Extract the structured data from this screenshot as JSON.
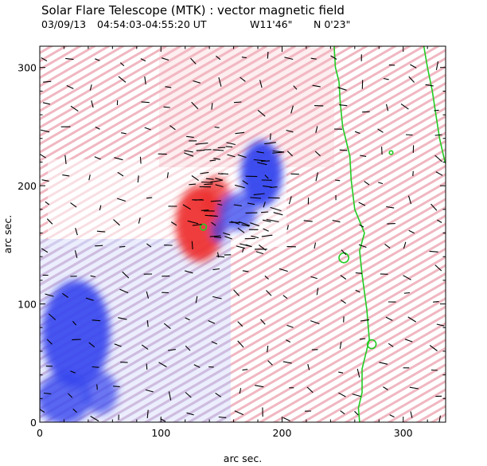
{
  "chart_data": {
    "type": "heatmap",
    "title": "Solar Flare Telescope (MTK) : vector magnetic field",
    "subtitle": {
      "date": "03/09/13",
      "time_range": "04:54:03-04:55:20 UT",
      "longitude": "W11'46\"",
      "latitude": "N 0'23\""
    },
    "xlabel": "arc sec.",
    "ylabel": "arc sec.",
    "xlim": [
      0,
      335
    ],
    "ylim": [
      0,
      318
    ],
    "x_ticks": [
      0,
      100,
      200,
      300
    ],
    "y_ticks": [
      0,
      100,
      200,
      300
    ],
    "x_tick_labels": [
      "0",
      "100",
      "200",
      "300"
    ],
    "y_tick_labels": [
      "0",
      "100",
      "200",
      "300"
    ],
    "polarity_colors": {
      "positive": "#ee3333",
      "negative": "#3344ee",
      "contour": "#22cc22",
      "vectors": "#000000"
    },
    "regions": [
      {
        "polarity": "positive",
        "cx": 132,
        "cy": 168,
        "rx": 20,
        "ry": 32,
        "strength": 0.95
      },
      {
        "polarity": "positive",
        "cx": 145,
        "cy": 190,
        "rx": 12,
        "ry": 18,
        "strength": 0.8
      },
      {
        "polarity": "negative",
        "cx": 183,
        "cy": 210,
        "rx": 17,
        "ry": 28,
        "strength": 0.95
      },
      {
        "polarity": "negative",
        "cx": 163,
        "cy": 178,
        "rx": 16,
        "ry": 16,
        "strength": 0.75
      },
      {
        "polarity": "negative",
        "cx": 148,
        "cy": 162,
        "rx": 7,
        "ry": 10,
        "strength": 0.7
      },
      {
        "polarity": "negative",
        "cx": 30,
        "cy": 75,
        "rx": 28,
        "ry": 45,
        "strength": 0.9
      },
      {
        "polarity": "negative",
        "cx": 20,
        "cy": 20,
        "rx": 22,
        "ry": 22,
        "strength": 0.8
      },
      {
        "polarity": "negative",
        "cx": 50,
        "cy": 25,
        "rx": 14,
        "ry": 18,
        "strength": 0.7
      }
    ],
    "contours": [
      {
        "name": "neutral-line-left",
        "points": [
          [
            243,
            318
          ],
          [
            244,
            300
          ],
          [
            247,
            288
          ],
          [
            248,
            270
          ],
          [
            250,
            250
          ],
          [
            256,
            225
          ],
          [
            257,
            205
          ],
          [
            260,
            180
          ],
          [
            268,
            160
          ],
          [
            264,
            145
          ],
          [
            266,
            125
          ],
          [
            270,
            95
          ],
          [
            272,
            70
          ],
          [
            266,
            45
          ],
          [
            266,
            25
          ],
          [
            263,
            12
          ],
          [
            264,
            0
          ]
        ]
      },
      {
        "name": "neutral-line-right",
        "points": [
          [
            317,
            318
          ],
          [
            320,
            300
          ],
          [
            324,
            280
          ],
          [
            327,
            260
          ],
          [
            330,
            240
          ],
          [
            334,
            222
          ],
          [
            336,
            216
          ]
        ]
      },
      {
        "name": "neutral-loop-1",
        "center": [
          251,
          139
        ],
        "radius": 4
      },
      {
        "name": "neutral-loop-2",
        "center": [
          274,
          66
        ],
        "radius": 3.6
      },
      {
        "name": "neutral-loop-3",
        "center": [
          290,
          228
        ],
        "radius": 1.5
      },
      {
        "name": "neutral-loop-4",
        "center": [
          135,
          165
        ],
        "radius": 2.5
      }
    ]
  }
}
